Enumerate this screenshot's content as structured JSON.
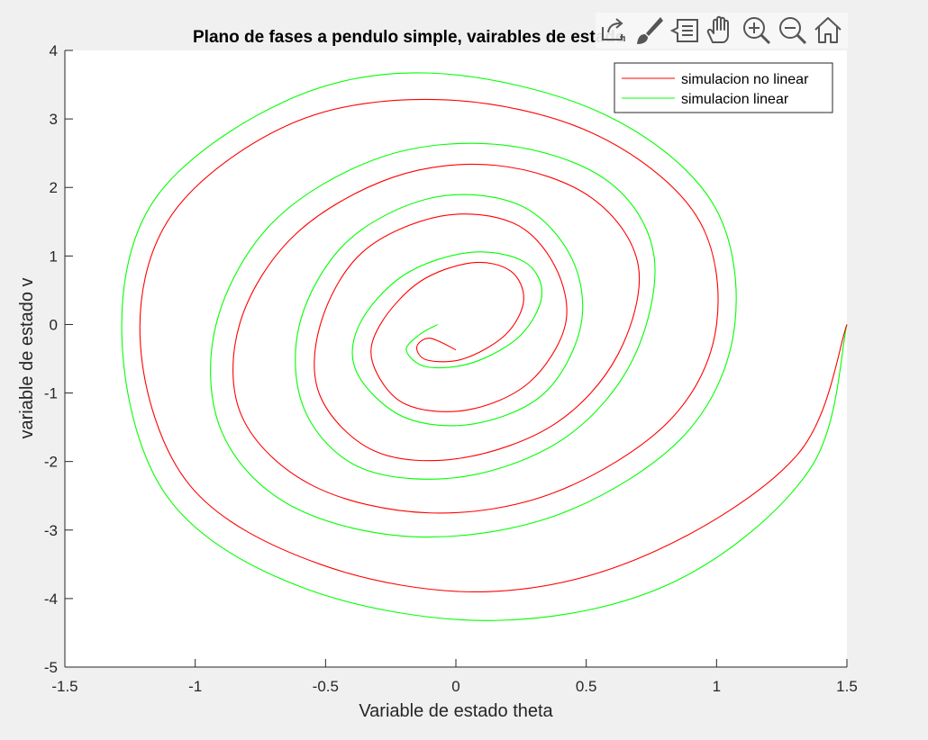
{
  "chart_data": {
    "type": "line",
    "title": "Plano de fases a pendulo simple, vairables de estado",
    "xlabel": "Variable de estado theta",
    "ylabel": "variable de estado v",
    "xlim": [
      -1.5,
      1.5
    ],
    "ylim": [
      -5,
      4
    ],
    "xticks": [
      -1.5,
      -1,
      -0.5,
      0,
      0.5,
      1,
      1.5
    ],
    "xtick_labels": [
      "-1.5",
      "-1",
      "-0.5",
      "0",
      "0.5",
      "1",
      "1.5"
    ],
    "yticks": [
      -5,
      -4,
      -3,
      -2,
      -1,
      0,
      1,
      2,
      3,
      4
    ],
    "ytick_labels": [
      "-5",
      "-4",
      "-3",
      "-2",
      "-1",
      "0",
      "1",
      "2",
      "3",
      "4"
    ],
    "grid": false,
    "legend_position": "top-right",
    "series": [
      {
        "name": "simulacion no linear",
        "color": "#ff0000",
        "x": [
          1.5,
          1.31,
          0.74,
          0.12,
          -0.52,
          -1.02,
          -1.21,
          -1.09,
          -0.62,
          -0.05,
          0.52,
          0.92,
          1.0,
          0.82,
          0.38,
          -0.1,
          -0.55,
          -0.82,
          -0.83,
          -0.62,
          -0.24,
          0.16,
          0.52,
          0.7,
          0.62,
          0.38,
          0.02,
          -0.31,
          -0.52,
          -0.52,
          -0.36,
          -0.06,
          0.22,
          0.38,
          0.42,
          0.28,
          0.04,
          -0.2,
          -0.32,
          -0.29,
          -0.14,
          0.06,
          0.21,
          0.26,
          0.19,
          0.03,
          -0.11,
          -0.15,
          -0.1,
          0.0
        ],
        "y": [
          0,
          -1.9,
          -3.35,
          -3.9,
          -3.5,
          -2.35,
          -0.3,
          1.6,
          2.95,
          3.28,
          2.8,
          1.6,
          0.0,
          -1.4,
          -2.45,
          -2.75,
          -2.35,
          -1.35,
          0.0,
          1.3,
          2.15,
          2.32,
          1.85,
          0.85,
          -0.45,
          -1.45,
          -1.95,
          -1.85,
          -1.05,
          0.0,
          1.05,
          1.58,
          1.48,
          0.85,
          0.0,
          -0.85,
          -1.25,
          -1.15,
          -0.55,
          0.0,
          0.62,
          0.9,
          0.78,
          0.35,
          -0.15,
          -0.5,
          -0.52,
          -0.33,
          -0.2,
          -0.37
        ]
      },
      {
        "name": "simulacion linear",
        "color": "#00ff00",
        "x": [
          1.5,
          1.36,
          0.84,
          0.15,
          -0.58,
          -1.1,
          -1.28,
          -1.16,
          -0.66,
          -0.1,
          0.55,
          0.98,
          1.07,
          0.88,
          0.41,
          -0.14,
          -0.63,
          -0.9,
          -0.92,
          -0.7,
          -0.28,
          0.18,
          0.58,
          0.76,
          0.68,
          0.42,
          0.03,
          -0.36,
          -0.58,
          -0.6,
          -0.42,
          -0.09,
          0.24,
          0.44,
          0.48,
          0.34,
          0.07,
          -0.2,
          -0.38,
          -0.37,
          -0.2,
          0.05,
          0.26,
          0.33,
          0.25,
          0.07,
          -0.11,
          -0.19,
          -0.14,
          -0.07
        ],
        "y": [
          0,
          -2.1,
          -3.75,
          -4.32,
          -3.85,
          -2.55,
          -0.3,
          1.8,
          3.25,
          3.67,
          3.1,
          1.8,
          0.0,
          -1.6,
          -2.75,
          -3.1,
          -2.65,
          -1.55,
          0.0,
          1.5,
          2.45,
          2.62,
          2.1,
          1.0,
          -0.5,
          -1.65,
          -2.22,
          -2.1,
          -1.25,
          0.0,
          1.2,
          1.85,
          1.75,
          1.0,
          0.0,
          -1.0,
          -1.45,
          -1.35,
          -0.7,
          0.0,
          0.72,
          1.05,
          0.92,
          0.45,
          -0.15,
          -0.55,
          -0.62,
          -0.38,
          -0.15,
          0.0
        ]
      }
    ]
  },
  "toolbar": {
    "icons": [
      "export-icon",
      "brush-icon",
      "data-tips-icon",
      "pan-hand-icon",
      "zoom-in-icon",
      "zoom-out-icon",
      "home-icon"
    ]
  }
}
